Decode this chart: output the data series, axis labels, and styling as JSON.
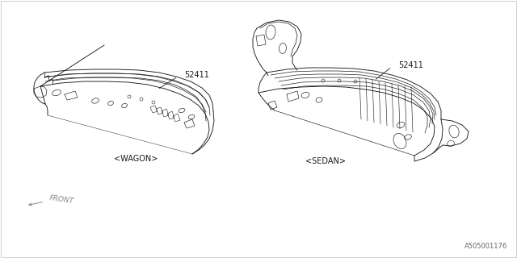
{
  "background_color": "#ffffff",
  "line_color": "#1a1a1a",
  "part_number": "52411",
  "label_wagon": "<WAGON>",
  "label_sedan": "<SEDAN>",
  "front_label": "FRONT",
  "diagram_id": "A505001176",
  "fig_width": 6.4,
  "fig_height": 3.2,
  "dpi": 100
}
